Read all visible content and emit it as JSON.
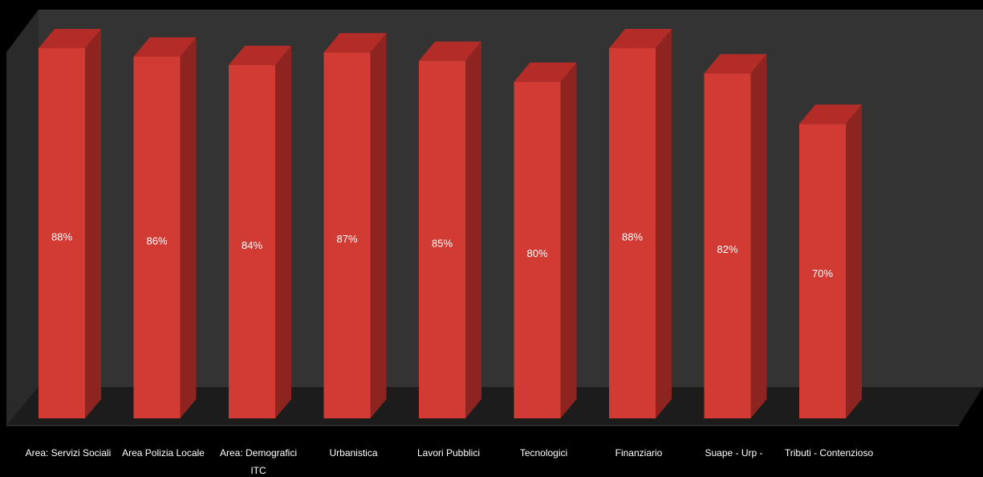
{
  "chart_data": {
    "type": "bar",
    "categories": [
      "Area: Servizi Sociali",
      "Area Polizia Locale",
      "Area: Demografici ITC",
      "Urbanistica",
      "Lavori Pubblici",
      "Tecnologici",
      "Finanziario",
      "Suape - Urp -",
      "Tributi - Contenzioso"
    ],
    "category_lines": [
      [
        "Area: Servizi Sociali"
      ],
      [
        "Area Polizia Locale"
      ],
      [
        "Area: Demografici",
        "ITC"
      ],
      [
        "Urbanistica"
      ],
      [
        "Lavori Pubblici"
      ],
      [
        "Tecnologici"
      ],
      [
        "Finanziario"
      ],
      [
        "Suape - Urp -"
      ],
      [
        "Tributi - Contenzioso"
      ]
    ],
    "values": [
      88,
      86,
      84,
      87,
      85,
      80,
      88,
      82,
      70
    ],
    "value_labels": [
      "88%",
      "86%",
      "84%",
      "87%",
      "85%",
      "80%",
      "88%",
      "82%",
      "70%"
    ],
    "title": "",
    "xlabel": "",
    "ylabel": "",
    "grid": false,
    "legend": "none",
    "style": "3d-column",
    "colors": {
      "bar_front": "#d23b34",
      "bar_side": "#8e2420",
      "bar_top": "#b32c27",
      "back_wall": "#333333",
      "side_wall": "#2a2a2a",
      "floor": "#1c1c1c",
      "background": "#000000",
      "text": "#ffffff"
    }
  }
}
